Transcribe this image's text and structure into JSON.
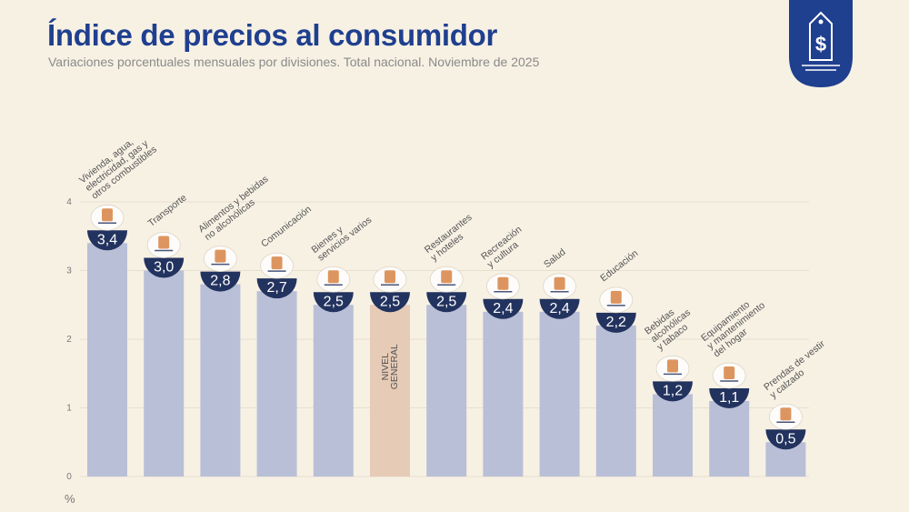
{
  "title": "Índice de precios al consumidor",
  "subtitle": "Variaciones porcentuales mensuales por divisiones. Total nacional. Noviembre de 2025",
  "logo_icon": "price-tag-dollar-icon",
  "colors": {
    "title": "#1f3f8f",
    "bar": "#b9bfd6",
    "highlight_bar": "#e6cbb6",
    "badge": "#23335f",
    "logo": "#1f3f8f",
    "background": "#f7f1e4"
  },
  "chart_data": {
    "type": "bar",
    "unit": "%",
    "ylim": [
      0,
      4
    ],
    "yticks": [
      "0",
      "1",
      "2",
      "3",
      "4"
    ],
    "grid": true,
    "categories": [
      "Vivienda, agua, electricidad, gas y otros combustibles",
      "Transporte",
      "Alimentos y bebidas no alcohólicas",
      "Comunicación",
      "Bienes y servicios varios",
      "NIVEL GENERAL",
      "Restaurantes y hoteles",
      "Recreación y cultura",
      "Salud",
      "Educación",
      "Bebidas alcohólicas y tabaco",
      "Equipamiento y mantenimiento del hogar",
      "Prendas de vestir y calzado"
    ],
    "values": [
      3.4,
      3.0,
      2.8,
      2.7,
      2.5,
      2.5,
      2.5,
      2.4,
      2.4,
      2.2,
      1.2,
      1.1,
      0.5
    ],
    "value_labels": [
      "3,4",
      "3,0",
      "2,8",
      "2,7",
      "2,5",
      "2,5",
      "2,5",
      "2,4",
      "2,4",
      "2,2",
      "1,2",
      "1,1",
      "0,5"
    ],
    "label_lines": [
      [
        "Vivienda, agua,",
        "electricidad, gas y",
        "otros combustibles"
      ],
      [
        "Transporte"
      ],
      [
        "Alimentos y bebidas",
        "no alcohólicas"
      ],
      [
        "Comunicación"
      ],
      [
        "Bienes y",
        "servicios varios"
      ],
      [],
      [
        "Restaurantes",
        "y hoteles"
      ],
      [
        "Recreación",
        "y cultura"
      ],
      [
        "Salud"
      ],
      [
        "Educación"
      ],
      [
        "Bebidas",
        "alcohólicas",
        "y tabaco"
      ],
      [
        "Equipamiento",
        "y mantenimiento",
        "del hogar"
      ],
      [
        "Prendas de vestir",
        "y calzado"
      ]
    ],
    "highlight_index": 5,
    "highlight_label_lines": [
      "NIVEL",
      "GENERAL"
    ],
    "icons": [
      "lightbulb-faucet-icon",
      "car-bus-icon",
      "food-basket-icon",
      "smartphone-icon",
      "comb-brush-icon",
      "consumer-basket-icon",
      "plate-cutlery-icon",
      "sun-umbrella-icon",
      "first-aid-icon",
      "notebook-icon",
      "bottle-cigarette-icon",
      "sofa-icon",
      "clothes-shoe-icon"
    ]
  }
}
